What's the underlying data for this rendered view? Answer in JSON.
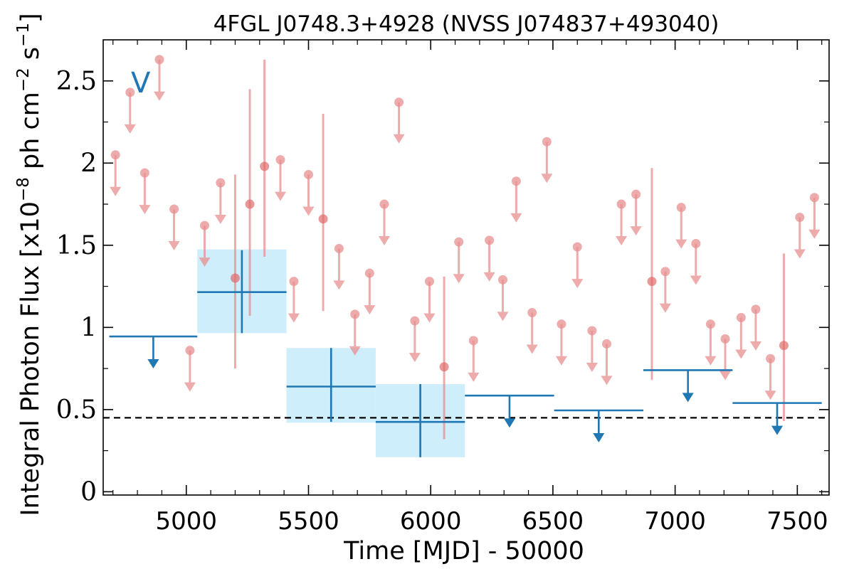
{
  "chart_data": {
    "type": "scatter",
    "title": "4FGL J0748.3+4928 (NVSS J074837+493040)",
    "xlabel": "Time [MJD] - 50000",
    "ylabel": "Integral Photon Flux [x10",
    "ylabel_exp1": "−8",
    "ylabel_mid": " ph cm",
    "ylabel_exp2": "−2",
    "ylabel_mid2": " s",
    "ylabel_exp3": "−1",
    "ylabel_end": "]",
    "panel_tag": "V",
    "xlim": [
      4660,
      7630
    ],
    "ylim": [
      -0.02,
      2.75
    ],
    "x_ticks": [
      5000,
      5500,
      6000,
      6500,
      7000,
      7500
    ],
    "x_tick_labels": [
      "5000",
      "5500",
      "6000",
      "6500",
      "7000",
      "7500"
    ],
    "y_ticks": [
      0,
      0.5,
      1,
      1.5,
      2,
      2.5
    ],
    "y_tick_labels": [
      "0",
      "0.5",
      "1",
      "1.5",
      "2",
      "2.5"
    ],
    "reference_line": {
      "y": 0.45,
      "style": "dashed",
      "color": "#000000"
    },
    "colors": {
      "short_bins": "#e88f8f",
      "long_bins": "#1f77b4",
      "band": "#cfeefc"
    },
    "long_bins": {
      "detections": [
        {
          "x0": 5045,
          "x1": 5410,
          "y": 1.215,
          "ylo": 0.965,
          "yhi": 1.47,
          "band_lo": 0.965,
          "band_hi": 1.475
        },
        {
          "x0": 5410,
          "x1": 5775,
          "y": 0.64,
          "ylo": 0.425,
          "yhi": 0.875,
          "band_lo": 0.42,
          "band_hi": 0.875
        },
        {
          "x0": 5775,
          "x1": 6140,
          "y": 0.425,
          "ylo": 0.21,
          "yhi": 0.655,
          "band_lo": 0.21,
          "band_hi": 0.655
        }
      ],
      "upper_limits": [
        {
          "x0": 4685,
          "x1": 5045,
          "y": 0.945
        },
        {
          "x0": 6140,
          "x1": 6505,
          "y": 0.585
        },
        {
          "x0": 6505,
          "x1": 6870,
          "y": 0.495
        },
        {
          "x0": 6870,
          "x1": 7235,
          "y": 0.74
        },
        {
          "x0": 7235,
          "x1": 7600,
          "y": 0.54
        }
      ]
    },
    "short_bins": {
      "upper_limits": [
        {
          "x": 4710,
          "y": 2.05
        },
        {
          "x": 4770,
          "y": 2.43
        },
        {
          "x": 4830,
          "y": 1.94
        },
        {
          "x": 4890,
          "y": 2.63
        },
        {
          "x": 4950,
          "y": 1.72
        },
        {
          "x": 5015,
          "y": 0.86
        },
        {
          "x": 5075,
          "y": 1.62
        },
        {
          "x": 5140,
          "y": 1.88
        },
        {
          "x": 5385,
          "y": 2.02
        },
        {
          "x": 5440,
          "y": 1.28
        },
        {
          "x": 5500,
          "y": 1.93
        },
        {
          "x": 5625,
          "y": 1.48
        },
        {
          "x": 5690,
          "y": 1.08
        },
        {
          "x": 5750,
          "y": 1.33
        },
        {
          "x": 5810,
          "y": 1.75
        },
        {
          "x": 5870,
          "y": 2.37
        },
        {
          "x": 5935,
          "y": 1.04
        },
        {
          "x": 5995,
          "y": 1.28
        },
        {
          "x": 6115,
          "y": 1.52
        },
        {
          "x": 6175,
          "y": 0.92
        },
        {
          "x": 6240,
          "y": 1.53
        },
        {
          "x": 6295,
          "y": 1.29
        },
        {
          "x": 6350,
          "y": 1.89
        },
        {
          "x": 6415,
          "y": 1.09
        },
        {
          "x": 6475,
          "y": 2.13
        },
        {
          "x": 6535,
          "y": 1.02
        },
        {
          "x": 6600,
          "y": 1.49
        },
        {
          "x": 6660,
          "y": 0.98
        },
        {
          "x": 6720,
          "y": 0.9
        },
        {
          "x": 6780,
          "y": 1.75
        },
        {
          "x": 6840,
          "y": 1.81
        },
        {
          "x": 6960,
          "y": 1.34
        },
        {
          "x": 7025,
          "y": 1.73
        },
        {
          "x": 7085,
          "y": 1.51
        },
        {
          "x": 7145,
          "y": 1.02
        },
        {
          "x": 7205,
          "y": 0.93
        },
        {
          "x": 7270,
          "y": 1.06
        },
        {
          "x": 7330,
          "y": 1.11
        },
        {
          "x": 7390,
          "y": 0.81
        },
        {
          "x": 7510,
          "y": 1.67
        },
        {
          "x": 7570,
          "y": 1.79
        }
      ],
      "detections": [
        {
          "x": 5200,
          "y": 1.3,
          "ylo": 0.75,
          "yhi": 1.93
        },
        {
          "x": 5260,
          "y": 1.75,
          "ylo": 1.07,
          "yhi": 2.45
        },
        {
          "x": 5320,
          "y": 1.98,
          "ylo": 1.43,
          "yhi": 2.63
        },
        {
          "x": 5560,
          "y": 1.66,
          "ylo": 1.1,
          "yhi": 2.3
        },
        {
          "x": 6055,
          "y": 0.76,
          "ylo": 0.32,
          "yhi": 1.31
        },
        {
          "x": 6905,
          "y": 1.28,
          "ylo": 0.68,
          "yhi": 1.97
        },
        {
          "x": 7445,
          "y": 0.89,
          "ylo": 0.43,
          "yhi": 1.45
        }
      ]
    }
  }
}
